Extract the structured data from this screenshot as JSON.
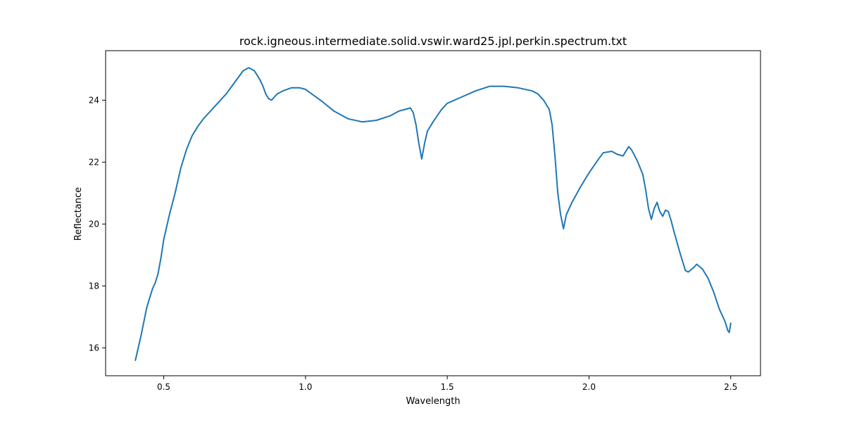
{
  "chart_data": {
    "type": "line",
    "title": "rock.igneous.intermediate.solid.vswir.ward25.jpl.perkin.spectrum.txt",
    "xlabel": "Wavelength",
    "ylabel": "Reflectance",
    "xlim": [
      0.295,
      2.605
    ],
    "ylim": [
      15.1,
      25.6
    ],
    "xticks": [
      0.5,
      1.0,
      1.5,
      2.0,
      2.5
    ],
    "xtick_labels": [
      "0.5",
      "1.0",
      "1.5",
      "2.0",
      "2.5"
    ],
    "yticks": [
      16,
      18,
      20,
      22,
      24
    ],
    "ytick_labels": [
      "16",
      "18",
      "20",
      "22",
      "24"
    ],
    "grid": false,
    "line_color": "#1f77b4",
    "series": [
      {
        "x": [
          0.4,
          0.42,
          0.44,
          0.46,
          0.47,
          0.48,
          0.49,
          0.5,
          0.52,
          0.54,
          0.56,
          0.58,
          0.6,
          0.62,
          0.64,
          0.66,
          0.68,
          0.7,
          0.72,
          0.74,
          0.76,
          0.78,
          0.8,
          0.82,
          0.84,
          0.85,
          0.86,
          0.87,
          0.88,
          0.89,
          0.9,
          0.92,
          0.95,
          0.98,
          1.0,
          1.03,
          1.06,
          1.1,
          1.15,
          1.2,
          1.25,
          1.3,
          1.33,
          1.35,
          1.37,
          1.38,
          1.39,
          1.4,
          1.41,
          1.42,
          1.43,
          1.45,
          1.48,
          1.5,
          1.55,
          1.6,
          1.65,
          1.7,
          1.75,
          1.8,
          1.82,
          1.84,
          1.86,
          1.87,
          1.88,
          1.89,
          1.9,
          1.91,
          1.92,
          1.94,
          1.97,
          2.0,
          2.03,
          2.05,
          2.08,
          2.1,
          2.12,
          2.14,
          2.15,
          2.17,
          2.19,
          2.2,
          2.21,
          2.22,
          2.23,
          2.24,
          2.25,
          2.26,
          2.27,
          2.28,
          2.29,
          2.3,
          2.32,
          2.34,
          2.35,
          2.37,
          2.38,
          2.4,
          2.42,
          2.44,
          2.46,
          2.48,
          2.49,
          2.495,
          2.5
        ],
        "y": [
          15.6,
          16.4,
          17.3,
          17.9,
          18.1,
          18.4,
          18.9,
          19.5,
          20.3,
          21.0,
          21.8,
          22.4,
          22.85,
          23.15,
          23.4,
          23.6,
          23.8,
          24.0,
          24.2,
          24.45,
          24.7,
          24.95,
          25.05,
          24.95,
          24.65,
          24.45,
          24.2,
          24.05,
          24.0,
          24.1,
          24.2,
          24.3,
          24.4,
          24.4,
          24.35,
          24.15,
          23.95,
          23.65,
          23.4,
          23.3,
          23.35,
          23.5,
          23.65,
          23.7,
          23.75,
          23.6,
          23.2,
          22.6,
          22.1,
          22.6,
          23.0,
          23.3,
          23.7,
          23.9,
          24.1,
          24.3,
          24.45,
          24.45,
          24.4,
          24.3,
          24.2,
          24.0,
          23.7,
          23.2,
          22.2,
          21.0,
          20.3,
          19.85,
          20.3,
          20.7,
          21.2,
          21.65,
          22.05,
          22.3,
          22.35,
          22.25,
          22.2,
          22.5,
          22.4,
          22.05,
          21.6,
          21.1,
          20.5,
          20.15,
          20.5,
          20.7,
          20.4,
          20.25,
          20.45,
          20.4,
          20.1,
          19.75,
          19.1,
          18.5,
          18.45,
          18.6,
          18.7,
          18.55,
          18.25,
          17.8,
          17.25,
          16.85,
          16.55,
          16.5,
          16.8
        ]
      }
    ]
  }
}
